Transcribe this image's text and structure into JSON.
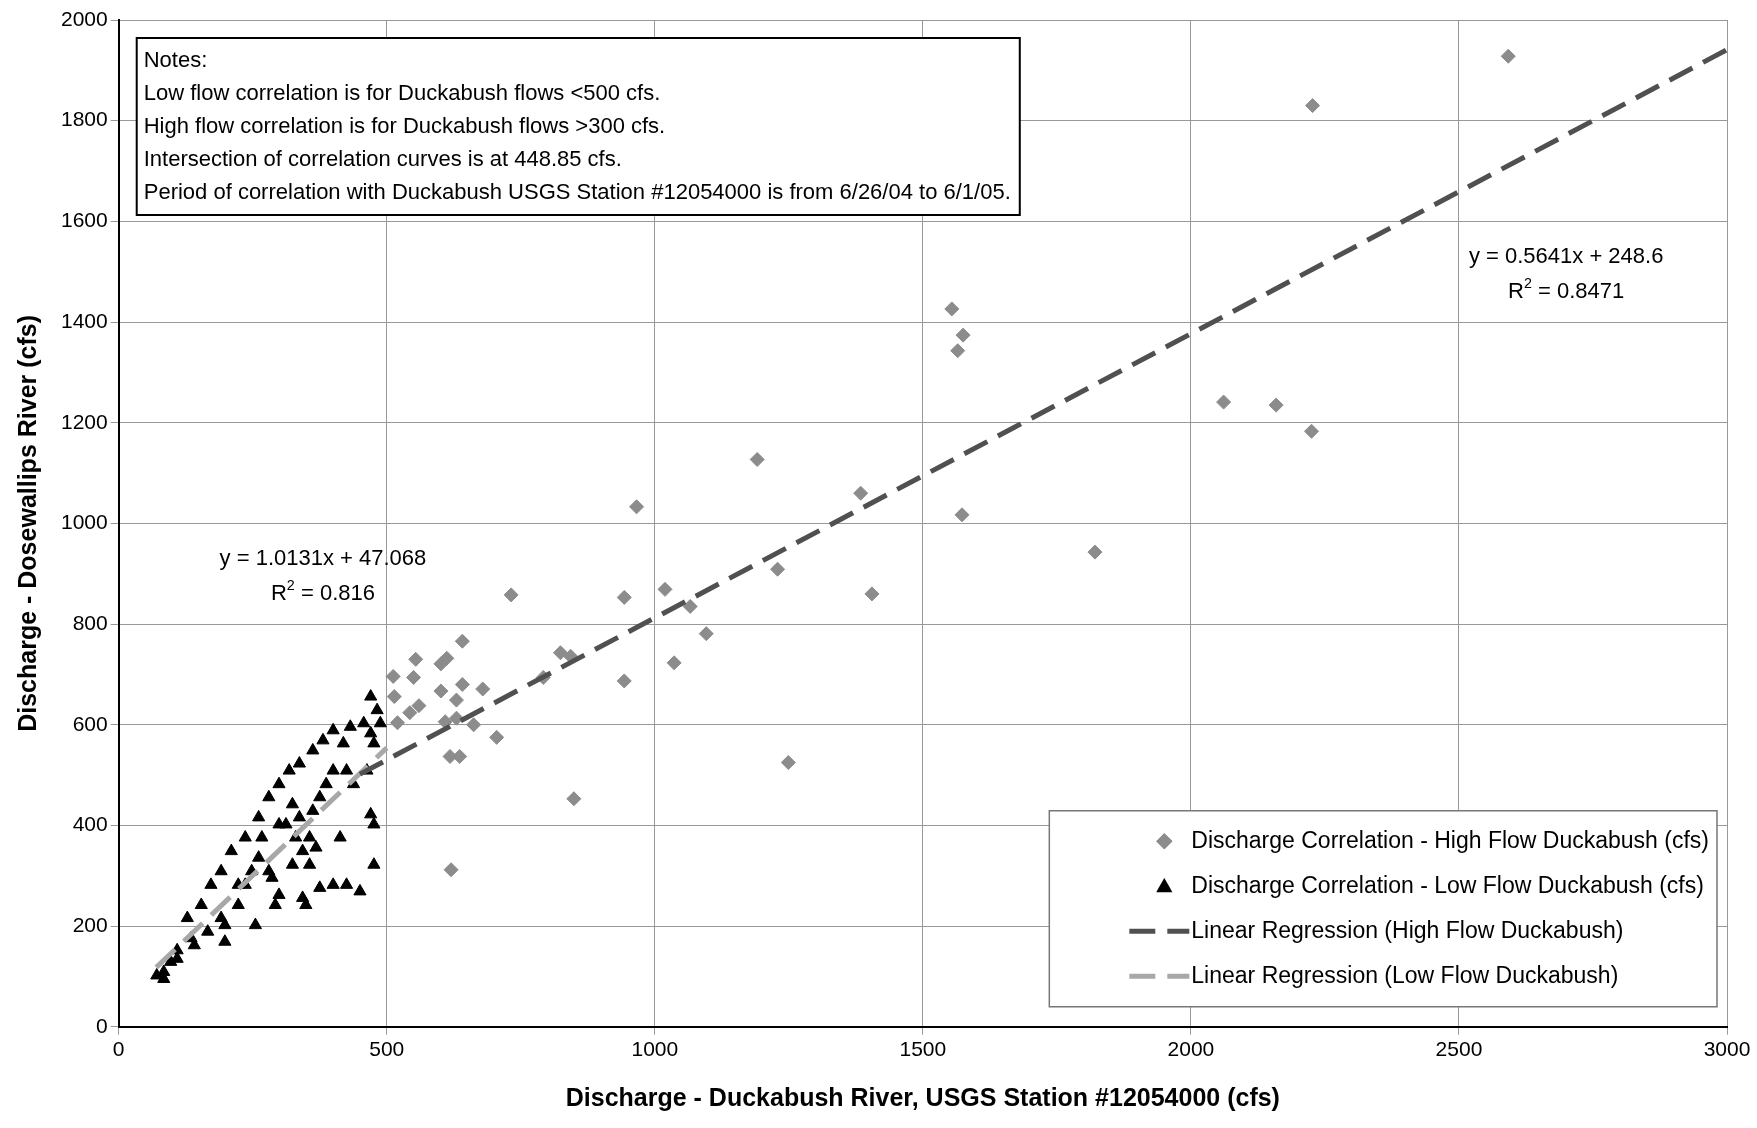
{
  "chart_data": {
    "type": "scatter",
    "xlabel": "Discharge - Duckabush River, USGS Station #12054000 (cfs)",
    "ylabel": "Discharge - Dosewallips River (cfs)",
    "xlim": [
      0,
      3000
    ],
    "xticks": [
      0,
      500,
      1000,
      1500,
      2000,
      2500,
      3000
    ],
    "ylim": [
      0,
      2000
    ],
    "yticks": [
      0,
      200,
      400,
      600,
      800,
      1000,
      1200,
      1400,
      1600,
      1800,
      2000
    ],
    "grid": true,
    "legend": "bottom right",
    "series": [
      {
        "name": "Discharge Correlation - High Flow Duckabush (cfs)",
        "type": "scatter",
        "marker": "diamond",
        "color": "#8c8c8c",
        "x": [
          512,
          514,
          554,
          550,
          601,
          612,
          641,
          520,
          543,
          560,
          601,
          630,
          679,
          641,
          609,
          630,
          618,
          636,
          705,
          662,
          732,
          943,
          943,
          966,
          1019,
          1066,
          1036,
          1096,
          1191,
          1229,
          1249,
          1384,
          1405,
          849,
          620,
          792,
          824,
          843,
          1554,
          1565,
          1575,
          1573,
          1821,
          2061,
          2159,
          2225,
          2227,
          2592
        ],
        "values": [
          696,
          656,
          730,
          694,
          721,
          732,
          766,
          604,
          624,
          638,
          667,
          649,
          671,
          680,
          606,
          613,
          537,
          537,
          575,
          600,
          858,
          853,
          687,
          1033,
          869,
          835,
          723,
          781,
          1127,
          909,
          525,
          1060,
          860,
          453,
          312,
          694,
          743,
          736,
          1426,
          1343,
          1374,
          1017,
          943,
          1241,
          1235,
          1183,
          1830,
          1928
        ]
      },
      {
        "name": "Discharge Correlation - Low Flow Duckabush (cfs)",
        "type": "scatter",
        "marker": "triangle",
        "color": "#000000",
        "x": [
          71,
          84,
          97,
          109,
          135,
          128,
          154,
          172,
          191,
          210,
          236,
          261,
          280,
          299,
          318,
          337,
          362,
          381,
          400,
          419,
          432,
          457,
          470,
          482,
          470,
          488,
          476,
          463,
          438,
          425,
          400,
          387,
          375,
          362,
          337,
          356,
          368,
          343,
          324,
          356,
          413,
          470,
          476,
          476,
          450,
          425,
          400,
          375,
          343,
          349,
          292,
          255,
          299,
          286,
          261,
          236,
          223,
          198,
          198,
          166,
          141,
          109,
          84,
          191,
          223,
          248,
          267,
          299,
          324,
          312,
          280,
          330
        ],
        "values": [
          102,
          109,
          129,
          152,
          176,
          216,
          242,
          282,
          309,
          349,
          376,
          416,
          456,
          482,
          509,
          523,
          549,
          569,
          589,
          563,
          596,
          603,
          656,
          629,
          583,
          603,
          563,
          509,
          482,
          509,
          509,
          482,
          456,
          429,
          416,
          376,
          356,
          349,
          322,
          322,
          376,
          422,
          402,
          322,
          269,
          282,
          282,
          276,
          256,
          242,
          242,
          202,
          262,
          296,
          336,
          282,
          242,
          202,
          169,
          189,
          162,
          135,
          95,
          216,
          282,
          309,
          376,
          402,
          442,
          402,
          309,
          376
        ]
      },
      {
        "name": "Linear Regression (High Flow Duckabush)",
        "type": "line",
        "line_style": "dashed",
        "marker": "none",
        "color": "#505050",
        "x": [
          450,
          3000
        ],
        "values": [
          502,
          1941
        ]
      },
      {
        "name": "Linear Regression (Low Flow Duckabush)",
        "type": "line",
        "line_style": "dashed",
        "marker": "none",
        "color": "#a8a8a8",
        "x": [
          70,
          500
        ],
        "values": [
          118,
          554
        ]
      }
    ],
    "annotations": [
      "Notes:",
      "Low flow correlation is for Duckabush flows <500 cfs.",
      "High flow correlation is for Duckabush flows >300 cfs.",
      "Intersection of correlation curves is at 448.85 cfs.",
      "Period of correlation with Duckabush USGS Station #12054000 is from 6/26/04 to 6/1/05.",
      "y = 0.5641x + 248.6",
      "R$^{2}$ = 0.8471",
      "y = 1.0131x + 47.068",
      "R$^{2}$ = 0.816"
    ]
  }
}
